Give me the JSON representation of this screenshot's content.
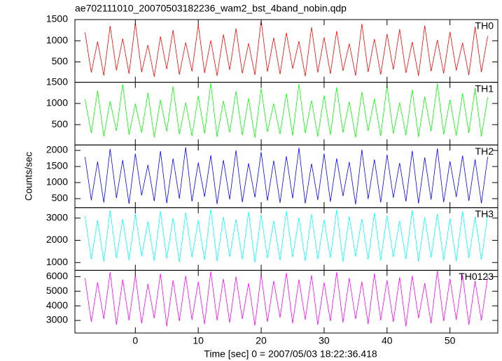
{
  "chart_data": [
    {
      "type": "line",
      "title": "ae702111010_20070503182236_wam2_bst_4band_nobin.qdp",
      "label": "TH0",
      "color": "#ff0000",
      "x": [
        -8,
        -7,
        -6,
        -5,
        -4,
        -3,
        -2,
        -1,
        0,
        1,
        2,
        3,
        4,
        5,
        6,
        7,
        8,
        9,
        10,
        11,
        12,
        13,
        14,
        15,
        16,
        17,
        18,
        19,
        20,
        21,
        22,
        23,
        24,
        25,
        26,
        27,
        28,
        29,
        30,
        31,
        32,
        33,
        34,
        35,
        36,
        37,
        38,
        39,
        40,
        41,
        42,
        43,
        44,
        45,
        46,
        47,
        48,
        49,
        50,
        51,
        52,
        53,
        54,
        55,
        56
      ],
      "values": [
        1200,
        250,
        980,
        180,
        1350,
        300,
        1050,
        220,
        1420,
        260,
        900,
        150,
        1100,
        330,
        1250,
        200,
        960,
        280,
        1380,
        240,
        1010,
        170,
        1150,
        310,
        1290,
        230,
        940,
        190,
        1480,
        270,
        1070,
        210,
        1190,
        340,
        990,
        160,
        1320,
        250,
        1080,
        220,
        1230,
        290,
        930,
        180,
        1400,
        260,
        1040,
        200,
        1160,
        320,
        1270,
        240,
        970,
        170,
        1360,
        280,
        1020,
        230,
        1210,
        300,
        950,
        190,
        1330,
        260,
        1110
      ],
      "xlim": [
        -9.6,
        57.6
      ],
      "xticks": [
        0,
        10,
        20,
        30,
        40,
        50
      ],
      "ylim": [
        20,
        1500
      ],
      "yticks": [
        500,
        1000,
        1500
      ]
    },
    {
      "type": "line",
      "label": "TH1",
      "color": "#00ff00",
      "x": [
        -8,
        -7,
        -6,
        -5,
        -4,
        -3,
        -2,
        -1,
        0,
        1,
        2,
        3,
        4,
        5,
        6,
        7,
        8,
        9,
        10,
        11,
        12,
        13,
        14,
        15,
        16,
        17,
        18,
        19,
        20,
        21,
        22,
        23,
        24,
        25,
        26,
        27,
        28,
        29,
        30,
        31,
        32,
        33,
        34,
        35,
        36,
        37,
        38,
        39,
        40,
        41,
        42,
        43,
        44,
        45,
        46,
        47,
        48,
        49,
        50,
        51,
        52,
        53,
        54,
        55,
        56
      ],
      "values": [
        1100,
        300,
        1300,
        220,
        1050,
        350,
        1450,
        260,
        990,
        310,
        1250,
        200,
        1080,
        340,
        1400,
        270,
        1020,
        230,
        1180,
        290,
        1480,
        210,
        1060,
        320,
        1290,
        250,
        1120,
        190,
        1350,
        330,
        1000,
        280,
        1230,
        240,
        1460,
        300,
        1070,
        220,
        1190,
        260,
        1380,
        310,
        1040,
        200,
        1270,
        350,
        1110,
        230,
        1430,
        290,
        1020,
        250,
        1320,
        210,
        1160,
        340,
        1470,
        270,
        1090,
        240,
        1240,
        300,
        1360,
        220,
        1150
      ],
      "xlim": [
        -9.6,
        57.6
      ],
      "xticks": [
        0,
        10,
        20,
        30,
        40,
        50
      ],
      "ylim": [
        20,
        1500
      ],
      "yticks": [
        500,
        1000,
        1500
      ]
    },
    {
      "type": "line",
      "label": "TH2",
      "color": "#0000ff",
      "ylabel": "Counts/sec",
      "x": [
        -8,
        -7,
        -6,
        -5,
        -4,
        -3,
        -2,
        -1,
        0,
        1,
        2,
        3,
        4,
        5,
        6,
        7,
        8,
        9,
        10,
        11,
        12,
        13,
        14,
        15,
        16,
        17,
        18,
        19,
        20,
        21,
        22,
        23,
        24,
        25,
        26,
        27,
        28,
        29,
        30,
        31,
        32,
        33,
        34,
        35,
        36,
        37,
        38,
        39,
        40,
        41,
        42,
        43,
        44,
        45,
        46,
        47,
        48,
        49,
        50,
        51,
        52,
        53,
        54,
        55,
        56
      ],
      "values": [
        1800,
        450,
        1650,
        380,
        2050,
        520,
        1700,
        340,
        1900,
        600,
        1550,
        420,
        1980,
        360,
        1750,
        500,
        2100,
        410,
        1620,
        560,
        1850,
        330,
        1700,
        480,
        2000,
        390,
        1600,
        540,
        1950,
        440,
        1680,
        370,
        1820,
        510,
        2080,
        350,
        1590,
        460,
        1900,
        400,
        1750,
        580,
        1640,
        320,
        2020,
        490,
        1720,
        380,
        1870,
        530,
        1610,
        410,
        1990,
        350,
        1780,
        470,
        2060,
        390,
        1660,
        550,
        1840,
        430,
        1720,
        360,
        1800
      ],
      "xlim": [
        -9.6,
        57.6
      ],
      "xticks": [
        0,
        10,
        20,
        30,
        40,
        50
      ],
      "ylim": [
        220,
        2170
      ],
      "yticks": [
        500,
        1000,
        1500,
        2000
      ]
    },
    {
      "type": "line",
      "label": "TH3",
      "color": "#00ffff",
      "x": [
        -8,
        -7,
        -6,
        -5,
        -4,
        -3,
        -2,
        -1,
        0,
        1,
        2,
        3,
        4,
        5,
        6,
        7,
        8,
        9,
        10,
        11,
        12,
        13,
        14,
        15,
        16,
        17,
        18,
        19,
        20,
        21,
        22,
        23,
        24,
        25,
        26,
        27,
        28,
        29,
        30,
        31,
        32,
        33,
        34,
        35,
        36,
        37,
        38,
        39,
        40,
        41,
        42,
        43,
        44,
        45,
        46,
        47,
        48,
        49,
        50,
        51,
        52,
        53,
        54,
        55,
        56
      ],
      "values": [
        3100,
        1150,
        2900,
        1050,
        3350,
        1200,
        2950,
        1100,
        3200,
        1280,
        2850,
        1080,
        3300,
        1180,
        3000,
        1020,
        3250,
        1230,
        2900,
        1120,
        3400,
        1060,
        3050,
        1260,
        2950,
        1140,
        3280,
        1000,
        3150,
        1190,
        2880,
        1100,
        3320,
        1240,
        3020,
        1070,
        3180,
        1160,
        2920,
        1210,
        3380,
        1030,
        3080,
        1270,
        2960,
        1130,
        3230,
        1090,
        3120,
        1250,
        2870,
        1170,
        3350,
        1040,
        3040,
        1220,
        3200,
        1110,
        2980,
        1060,
        3300,
        1200,
        3060,
        1130,
        3150
      ],
      "xlim": [
        -9.6,
        57.6
      ],
      "xticks": [
        0,
        10,
        20,
        30,
        40,
        50
      ],
      "ylim": [
        650,
        3470
      ],
      "yticks": [
        1000,
        2000,
        3000
      ]
    },
    {
      "type": "line",
      "label": "TH0123",
      "color": "#ff00ff",
      "xlabel": "Time [sec] 0 = 2007/05/03 18:22:36.418",
      "x": [
        -8,
        -7,
        -6,
        -5,
        -4,
        -3,
        -2,
        -1,
        0,
        1,
        2,
        3,
        4,
        5,
        6,
        7,
        8,
        9,
        10,
        11,
        12,
        13,
        14,
        15,
        16,
        17,
        18,
        19,
        20,
        21,
        22,
        23,
        24,
        25,
        26,
        27,
        28,
        29,
        30,
        31,
        32,
        33,
        34,
        35,
        36,
        37,
        38,
        39,
        40,
        41,
        42,
        43,
        44,
        45,
        46,
        47,
        48,
        49,
        50,
        51,
        52,
        53,
        54,
        55,
        56
      ],
      "values": [
        5900,
        2900,
        5600,
        3100,
        6300,
        2700,
        5800,
        3000,
        6100,
        2800,
        5500,
        3150,
        6200,
        2600,
        5750,
        2950,
        6050,
        3050,
        5650,
        2750,
        6350,
        3000,
        5850,
        2850,
        6000,
        3100,
        5550,
        2650,
        6150,
        2900,
        5700,
        3200,
        6250,
        2800,
        5800,
        3050,
        6100,
        2700,
        5600,
        2950,
        6300,
        2850,
        5900,
        3100,
        5650,
        2750,
        6200,
        3000,
        5750,
        2900,
        5950,
        2600,
        6050,
        3150,
        5550,
        2800,
        6400,
        2950,
        5850,
        3050,
        6100,
        2700,
        5700,
        3000,
        6000
      ],
      "xlim": [
        -9.6,
        57.6
      ],
      "xticks": [
        0,
        10,
        20,
        30,
        40,
        50
      ],
      "ylim": [
        2140,
        6430
      ],
      "yticks": [
        3000,
        4000,
        5000,
        6000
      ]
    }
  ]
}
